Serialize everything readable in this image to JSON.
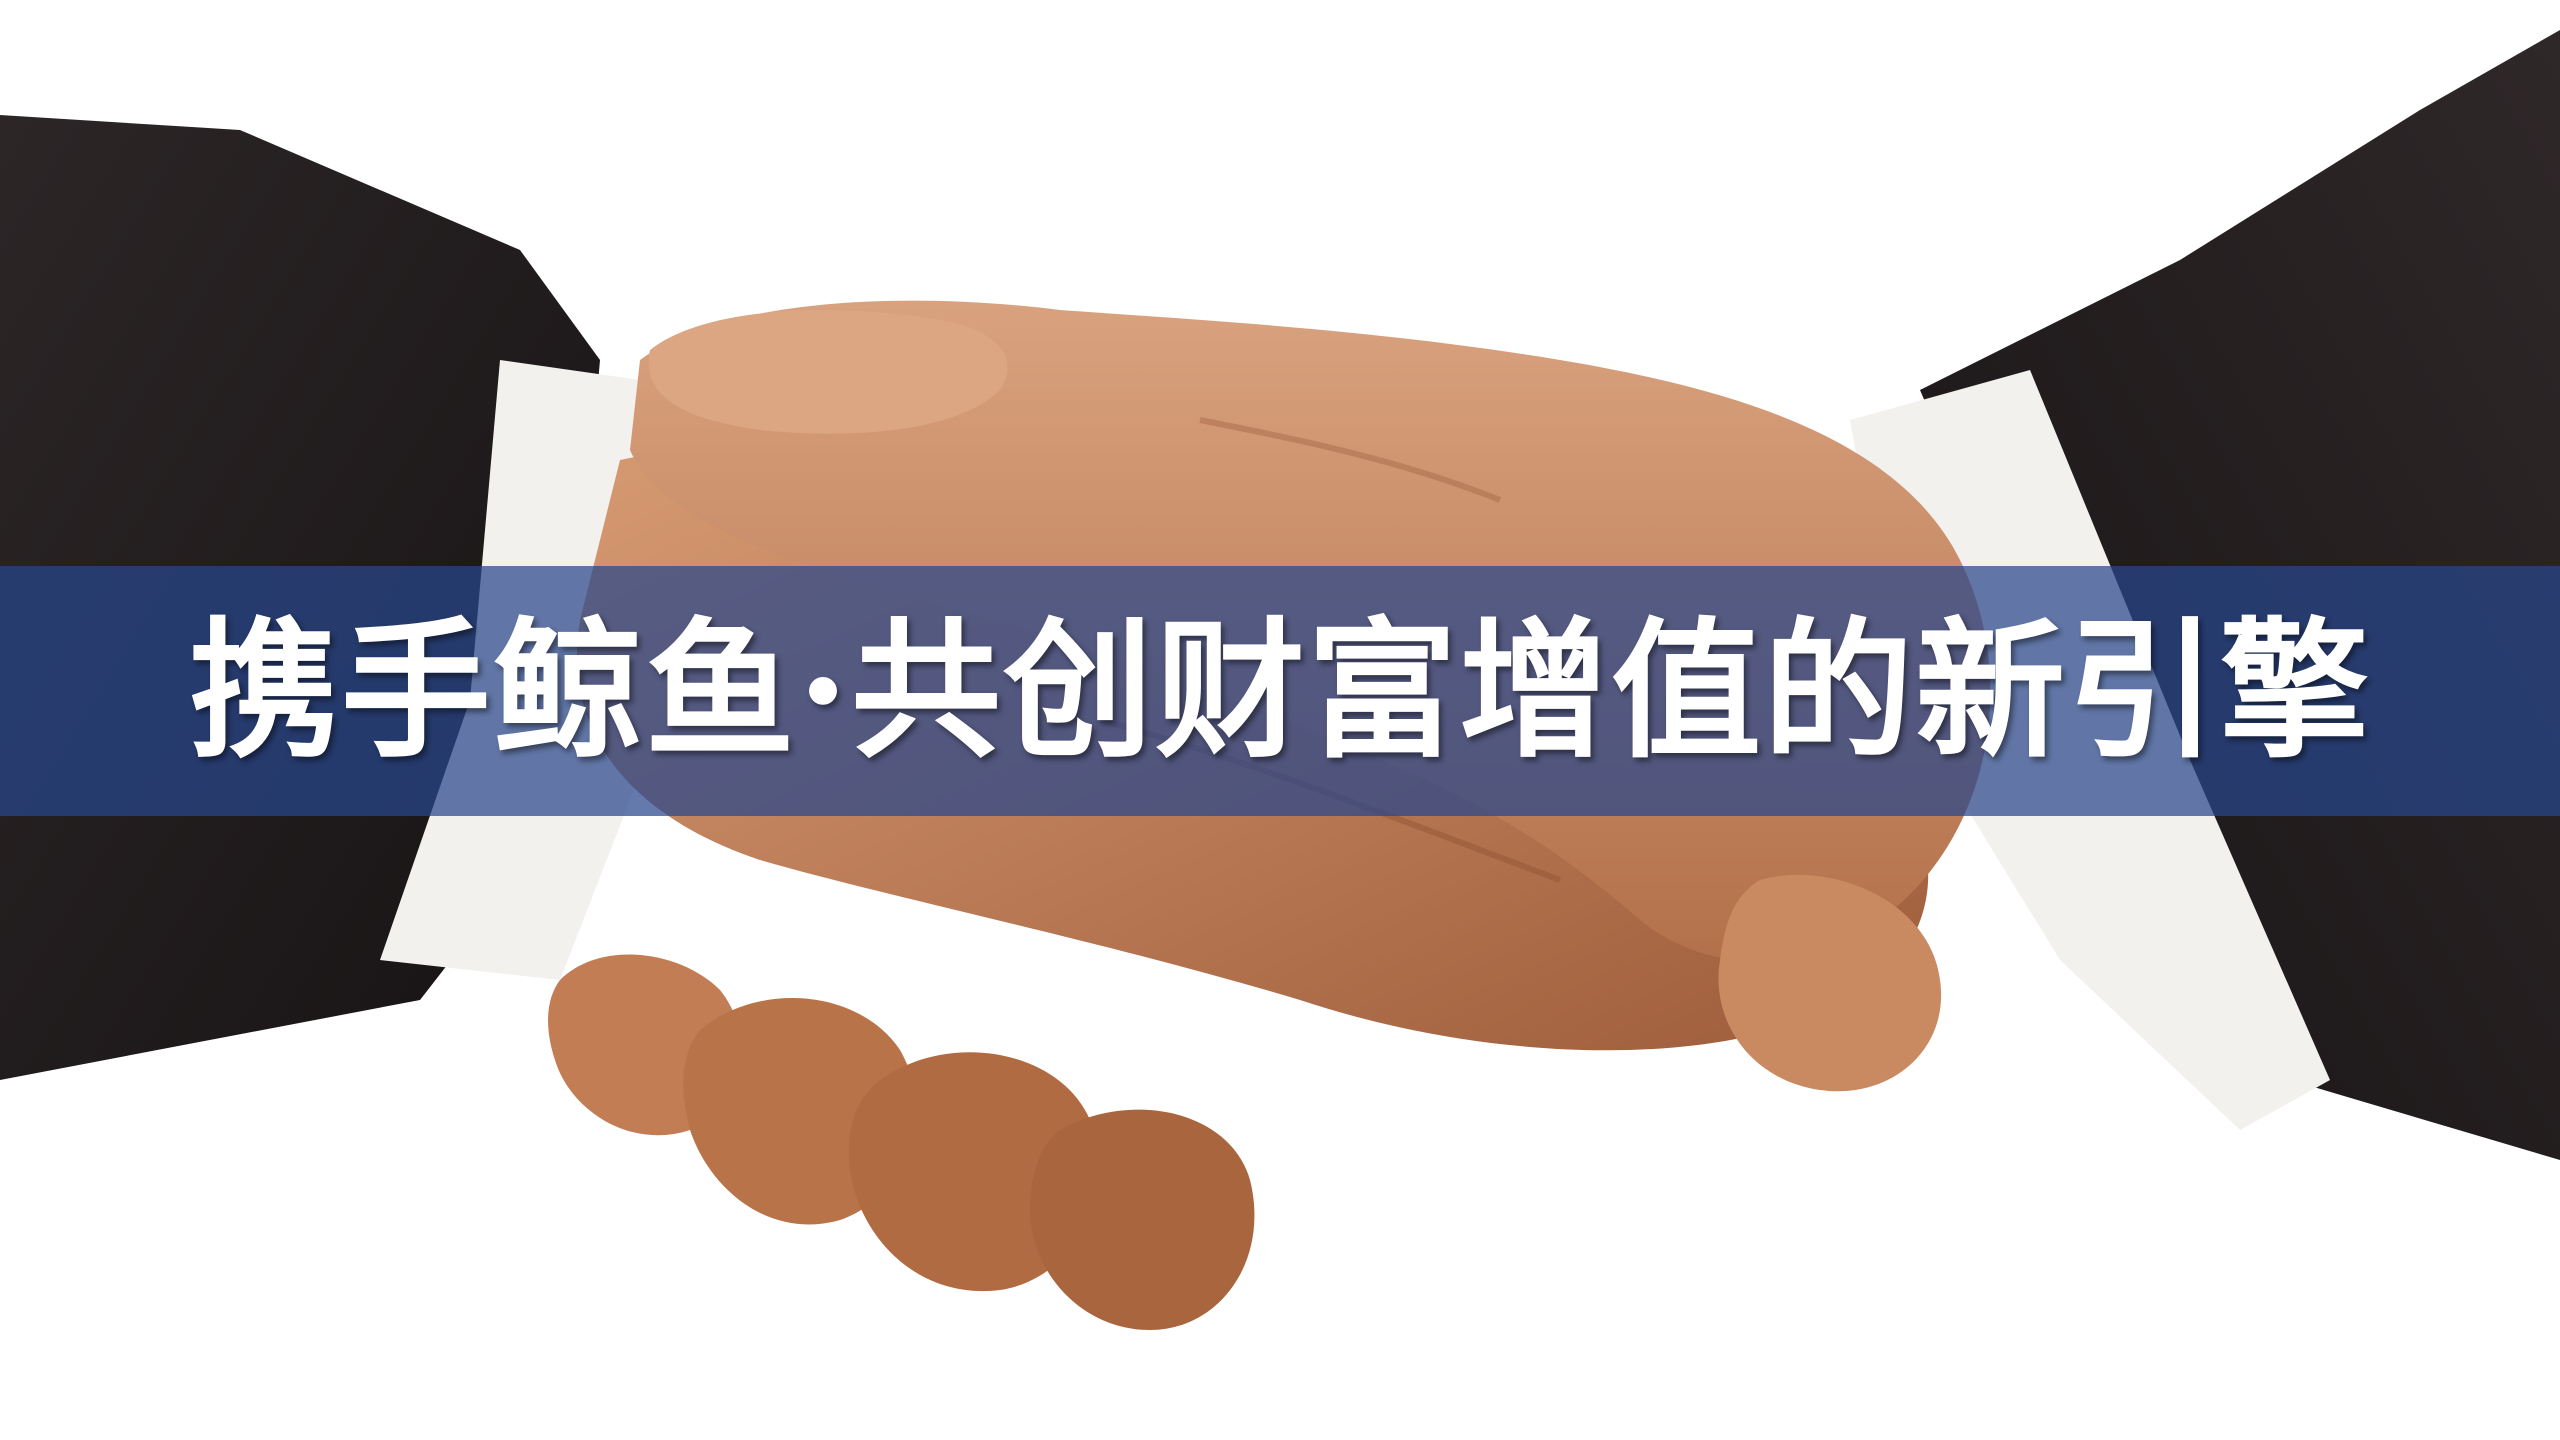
{
  "slide": {
    "title": "携手鲸鱼·共创财富增值的新引擎"
  },
  "image": {
    "subject": "handshake-photo",
    "colors": {
      "suit": "#231e1f",
      "skin": "#c98a62",
      "cuff": "#f3f1ee",
      "banner": "#28468c",
      "title_text": "#ffffff"
    }
  }
}
